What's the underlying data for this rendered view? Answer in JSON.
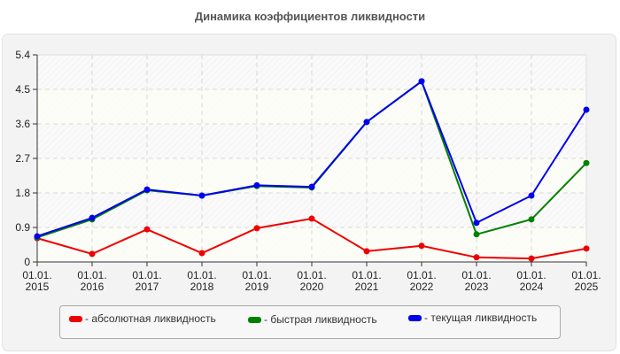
{
  "chart_data": {
    "type": "line",
    "title": "Динамика коэффициентов ликвидности",
    "xlabel": "",
    "ylabel": "",
    "categories": [
      "01.01.2015",
      "01.01.2016",
      "01.01.2017",
      "01.01.2018",
      "01.01.2019",
      "01.01.2020",
      "01.01.2021",
      "01.01.2022",
      "01.01.2023",
      "01.01.2024",
      "01.01.2025"
    ],
    "x_tick_labels": [
      [
        "01.01.",
        "2015"
      ],
      [
        "01.01.",
        "2016"
      ],
      [
        "01.01.",
        "2017"
      ],
      [
        "01.01.",
        "2018"
      ],
      [
        "01.01.",
        "2019"
      ],
      [
        "01.01.",
        "2020"
      ],
      [
        "01.01.",
        "2021"
      ],
      [
        "01.01.",
        "2022"
      ],
      [
        "01.01.",
        "2023"
      ],
      [
        "01.01.",
        "2024"
      ],
      [
        "01.01.",
        "2025"
      ]
    ],
    "y_ticks": [
      "0",
      "0.9",
      "1.8",
      "2.7",
      "3.6",
      "4.5",
      "5.4"
    ],
    "ylim": [
      0,
      5.4
    ],
    "grid": true,
    "legend_position": "bottom",
    "series": [
      {
        "name": "- абсолютная ликвидность",
        "color": "#ee0000",
        "values": [
          0.62,
          0.21,
          0.85,
          0.23,
          0.88,
          1.13,
          0.28,
          0.42,
          0.12,
          0.09,
          0.35
        ]
      },
      {
        "name": "- быстрая ликвидность",
        "color": "#008000",
        "values": [
          0.64,
          1.11,
          1.87,
          1.73,
          1.98,
          1.94,
          3.65,
          4.71,
          0.72,
          1.11,
          2.58
        ]
      },
      {
        "name": "- текущая ликвидность",
        "color": "#0000ee",
        "values": [
          0.67,
          1.15,
          1.89,
          1.73,
          2.0,
          1.96,
          3.65,
          4.71,
          1.02,
          1.73,
          3.97
        ]
      }
    ]
  },
  "legend": {
    "items": [
      {
        "label": "- абсолютная ликвидность",
        "color": "#ee0000"
      },
      {
        "label": "- быстрая ликвидность",
        "color": "#008000"
      },
      {
        "label": "- текущая ликвидность",
        "color": "#0000ee"
      }
    ]
  }
}
